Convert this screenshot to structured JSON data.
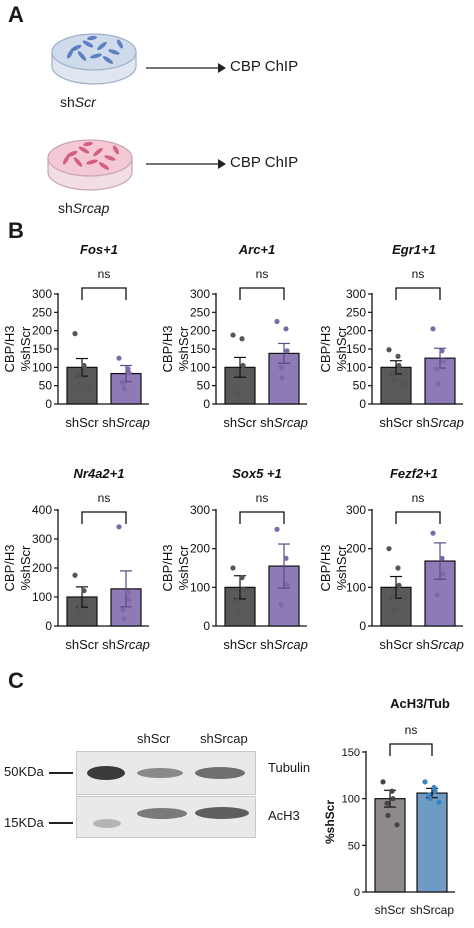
{
  "panel_a": {
    "letter": "A",
    "dish1_label": "shScr",
    "dish1_prefix": "sh",
    "dish1_suffix": "Scr",
    "dish2_prefix": "sh",
    "dish2_suffix": "Srcap",
    "arrow_text": "CBP ChIP",
    "dish1_color": "#5b7fc0",
    "dish2_color": "#d4607e"
  },
  "panel_b": {
    "letter": "B"
  },
  "panel_c": {
    "letter": "C",
    "lane_labels": [
      "shScr",
      "shSrcap"
    ],
    "mw_top": "50KDa",
    "mw_bottom": "15KDa",
    "ab_top": "Tubulin",
    "ab_bottom": "AcH3"
  },
  "colors": {
    "shScr_bar": "#595959",
    "shSrcap_bar": "#8e7ab5",
    "shSrcap_dot": "#7d68a8",
    "acH3_bar_scr": "#8f8a8a",
    "acH3_bar_srcap": "#6e9bc4",
    "acH3_dot_srcap": "#3a86c4"
  },
  "chart_data": [
    {
      "type": "bar",
      "title": "Fos+1",
      "ylabel": "CBP/H3\n%shScr",
      "ylabel_lines": [
        "CBP/H3",
        "%shScr"
      ],
      "categories": [
        "shScr",
        "shSrcap"
      ],
      "category_display": [
        {
          "prefix": "sh",
          "suffix": "Scr",
          "italic_suffix": false
        },
        {
          "prefix": "sh",
          "suffix": "Srcap",
          "italic_suffix": true
        }
      ],
      "values": [
        100,
        83
      ],
      "errors": [
        24,
        22
      ],
      "points": [
        [
          192,
          105,
          95,
          78,
          55,
          45
        ],
        [
          125,
          96,
          85,
          58,
          42
        ]
      ],
      "ylim": [
        0,
        300
      ],
      "yticks": [
        0,
        50,
        100,
        150,
        200,
        250,
        300
      ],
      "significance": "ns"
    },
    {
      "type": "bar",
      "title": "Arc+1",
      "ylabel": "CBP/H3\n%shScr",
      "ylabel_lines": [
        "CBP/H3",
        "%shScr"
      ],
      "categories": [
        "shScr",
        "shSrcap"
      ],
      "category_display": [
        {
          "prefix": "sh",
          "suffix": "Scr",
          "italic_suffix": false
        },
        {
          "prefix": "sh",
          "suffix": "Srcap",
          "italic_suffix": true
        }
      ],
      "values": [
        100,
        138
      ],
      "errors": [
        27,
        27
      ],
      "points": [
        [
          188,
          178,
          105,
          82,
          30
        ],
        [
          225,
          205,
          145,
          100,
          72
        ]
      ],
      "ylim": [
        0,
        300
      ],
      "yticks": [
        0,
        50,
        100,
        150,
        200,
        250,
        300
      ],
      "significance": "ns"
    },
    {
      "type": "bar",
      "title": "Egr1+1",
      "ylabel": "CBP/H3\n%shScr",
      "ylabel_lines": [
        "CBP/H3",
        "%shScr"
      ],
      "categories": [
        "shScr",
        "shSrcap"
      ],
      "category_display": [
        {
          "prefix": "sh",
          "suffix": "Scr",
          "italic_suffix": false
        },
        {
          "prefix": "sh",
          "suffix": "Srcap",
          "italic_suffix": true
        }
      ],
      "values": [
        100,
        125
      ],
      "errors": [
        18,
        27
      ],
      "points": [
        [
          148,
          130,
          105,
          85,
          65,
          55
        ],
        [
          205,
          145,
          118,
          95,
          55
        ]
      ],
      "ylim": [
        0,
        300
      ],
      "yticks": [
        0,
        50,
        100,
        150,
        200,
        250,
        300
      ],
      "significance": "ns"
    },
    {
      "type": "bar",
      "title": "Nr4a2+1",
      "ylabel": "CBP/H3\n%shScr",
      "ylabel_lines": [
        "CBP/H3",
        "%shScr"
      ],
      "categories": [
        "shScr",
        "shSrcap"
      ],
      "category_display": [
        {
          "prefix": "sh",
          "suffix": "Scr",
          "italic_suffix": false
        },
        {
          "prefix": "sh",
          "suffix": "Srcap",
          "italic_suffix": true
        }
      ],
      "values": [
        100,
        128
      ],
      "errors": [
        35,
        62
      ],
      "points": [
        [
          175,
          122,
          80,
          60,
          30
        ],
        [
          342,
          115,
          90,
          55,
          25
        ]
      ],
      "ylim": [
        0,
        400
      ],
      "yticks": [
        0,
        100,
        200,
        300,
        400
      ],
      "significance": "ns"
    },
    {
      "type": "bar",
      "title": "Sox5 +1",
      "ylabel": "CBP/H3\n%shScr",
      "ylabel_lines": [
        "CBP/H3",
        "%shScr"
      ],
      "categories": [
        "shScr",
        "shSrcap"
      ],
      "category_display": [
        {
          "prefix": "sh",
          "suffix": "Scr",
          "italic_suffix": false
        },
        {
          "prefix": "sh",
          "suffix": "Srcap",
          "italic_suffix": true
        }
      ],
      "values": [
        100,
        155
      ],
      "errors": [
        30,
        57
      ],
      "points": [
        [
          150,
          125,
          95,
          65,
          35
        ],
        [
          250,
          175,
          105,
          55
        ]
      ],
      "ylim": [
        0,
        300
      ],
      "yticks": [
        0,
        100,
        200,
        300
      ],
      "significance": "ns"
    },
    {
      "type": "bar",
      "title": "Fezf2+1",
      "ylabel": "CBP/H3\n%shScr",
      "ylabel_lines": [
        "CBP/H3",
        "%shScr"
      ],
      "categories": [
        "shScr",
        "shSrcap"
      ],
      "category_display": [
        {
          "prefix": "sh",
          "suffix": "Scr",
          "italic_suffix": false
        },
        {
          "prefix": "sh",
          "suffix": "Srcap",
          "italic_suffix": true
        }
      ],
      "values": [
        100,
        168
      ],
      "errors": [
        28,
        47
      ],
      "points": [
        [
          200,
          150,
          105,
          75,
          40
        ],
        [
          240,
          175,
          135,
          80
        ]
      ],
      "ylim": [
        0,
        300
      ],
      "yticks": [
        0,
        100,
        200,
        300
      ],
      "significance": "ns"
    },
    {
      "type": "bar",
      "title": "AcH3/Tub",
      "ylabel": "%shScr",
      "ylabel_lines": [
        "%shScr"
      ],
      "categories": [
        "shScr",
        "shSrcap"
      ],
      "category_display": [
        {
          "prefix": "",
          "suffix": "shScr",
          "italic_suffix": false
        },
        {
          "prefix": "",
          "suffix": "shSrcap",
          "italic_suffix": false
        }
      ],
      "values": [
        100,
        106
      ],
      "errors": [
        9,
        5
      ],
      "points": [
        [
          118,
          108,
          100,
          95,
          82,
          72
        ],
        [
          118,
          112,
          108,
          104,
          100,
          96
        ]
      ],
      "ylim": [
        0,
        150
      ],
      "yticks": [
        0,
        50,
        100,
        150
      ],
      "significance": "ns"
    }
  ]
}
